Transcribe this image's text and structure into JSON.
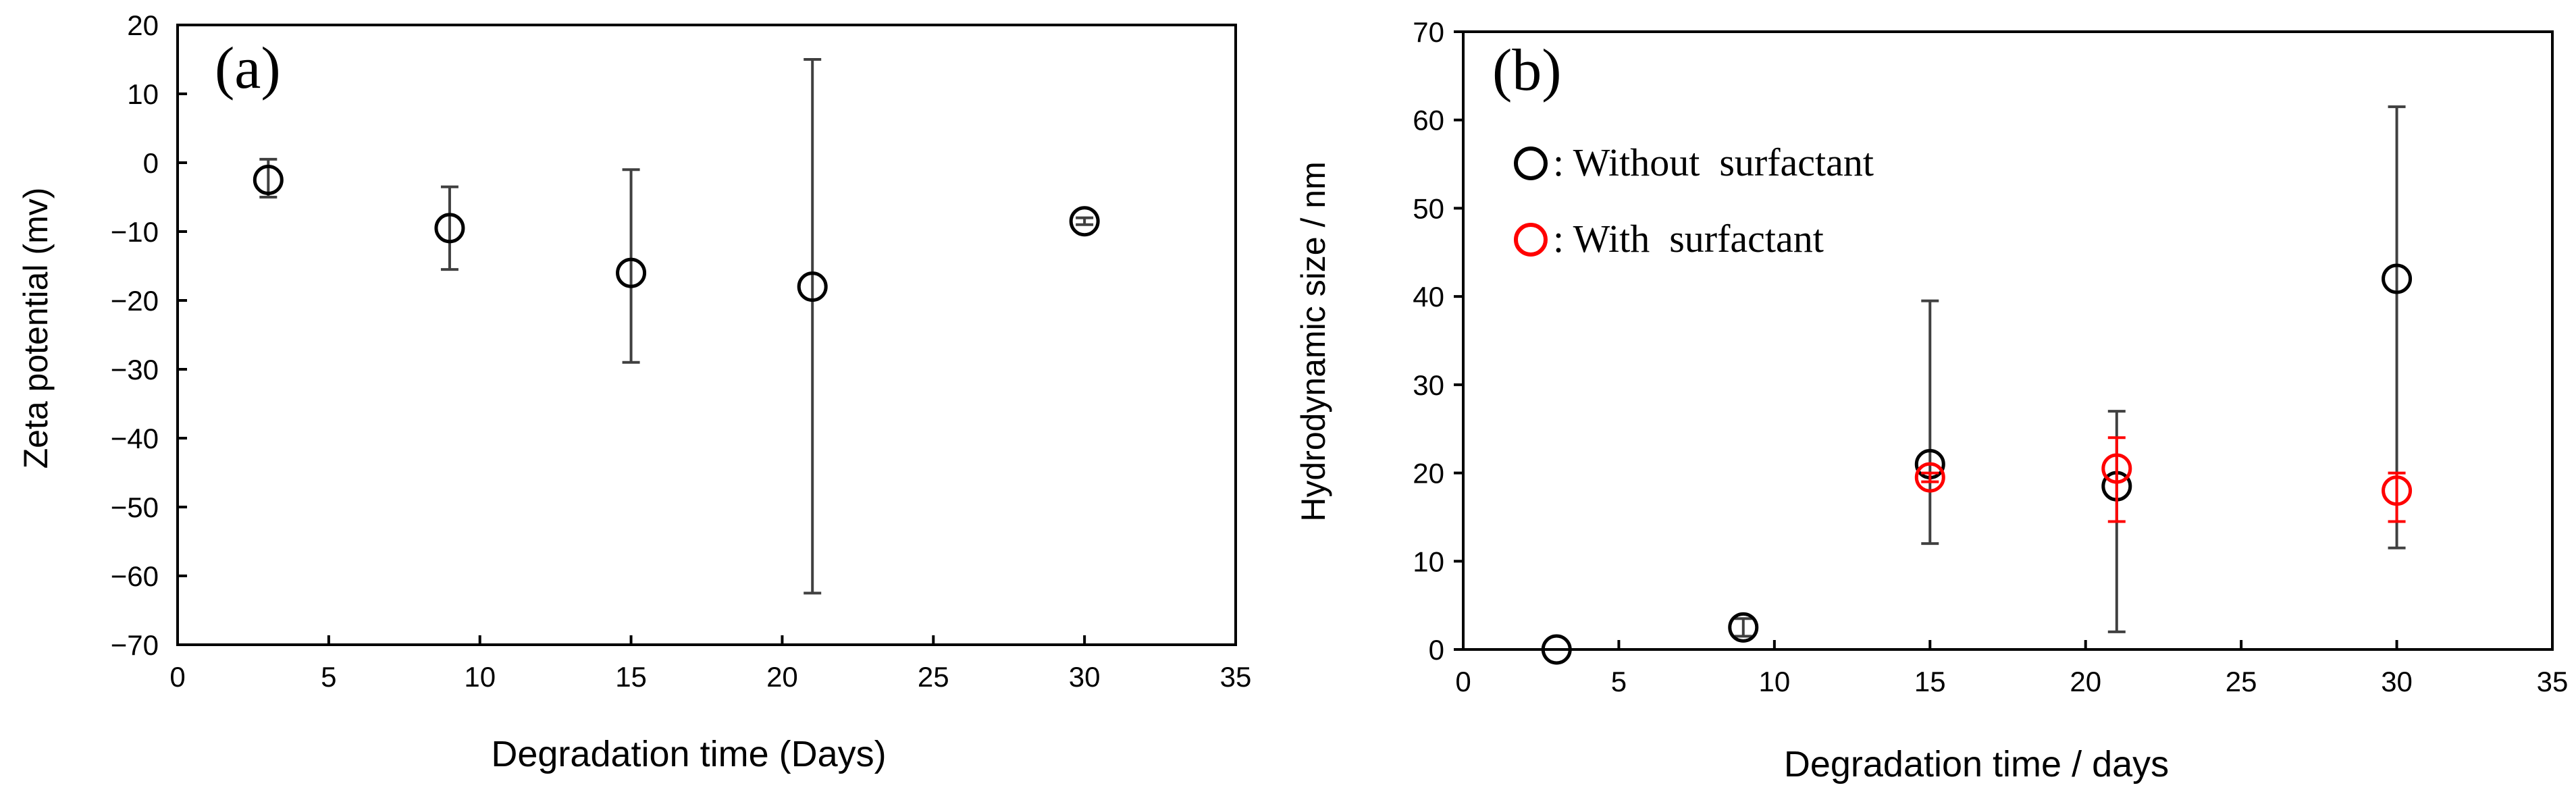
{
  "chart_data": [
    {
      "type": "scatter",
      "panel_label": "(a)",
      "xlabel": "Degradation time (Days)",
      "ylabel": "Zeta potential (mv)",
      "xlim": [
        0,
        35
      ],
      "ylim": [
        -70,
        20
      ],
      "xticks": [
        0,
        5,
        10,
        15,
        20,
        25,
        30,
        35
      ],
      "yticks": [
        20,
        10,
        0,
        -10,
        -20,
        -30,
        -40,
        -50,
        -60,
        -70
      ],
      "grid": false,
      "series": [
        {
          "color": "#000000",
          "marker": "open-circle",
          "points": [
            {
              "x": 3,
              "y": -2.5,
              "err_low": -5,
              "err_high": 0.5
            },
            {
              "x": 9,
              "y": -9.5,
              "err_low": -15.5,
              "err_high": -3.5
            },
            {
              "x": 15,
              "y": -16,
              "err_low": -29,
              "err_high": -1
            },
            {
              "x": 21,
              "y": -18,
              "err_low": -62.5,
              "err_high": 15
            },
            {
              "x": 30,
              "y": -8.5,
              "err_low": -9,
              "err_high": -8
            }
          ]
        }
      ]
    },
    {
      "type": "scatter",
      "panel_label": "(b)",
      "xlabel": "Degradation time / days",
      "ylabel": "Hydrodynamic size / nm",
      "xlim": [
        0,
        35
      ],
      "ylim": [
        0,
        70
      ],
      "xticks": [
        0,
        5,
        10,
        15,
        20,
        25,
        30,
        35
      ],
      "yticks": [
        70,
        60,
        50,
        40,
        30,
        20,
        10,
        0
      ],
      "grid": false,
      "legend_position": "top-left",
      "series": [
        {
          "name": ": Without  surfactant",
          "color": "#000000",
          "marker": "open-circle",
          "points": [
            {
              "x": 3,
              "y": 0,
              "err_low": 0,
              "err_high": 0
            },
            {
              "x": 9,
              "y": 2.5,
              "err_low": 1.5,
              "err_high": 3.5
            },
            {
              "x": 15,
              "y": 21,
              "err_low": 12,
              "err_high": 39.5
            },
            {
              "x": 21,
              "y": 18.5,
              "err_low": 2,
              "err_high": 27
            },
            {
              "x": 30,
              "y": 42,
              "err_low": 11.5,
              "err_high": 61.5
            }
          ]
        },
        {
          "name": ": With  surfactant",
          "color": "#ff0000",
          "marker": "open-circle",
          "points": [
            {
              "x": 15,
              "y": 19.5,
              "err_low": 19,
              "err_high": 20
            },
            {
              "x": 21,
              "y": 20.5,
              "err_low": 14.5,
              "err_high": 24
            },
            {
              "x": 30,
              "y": 18,
              "err_low": 14.5,
              "err_high": 20
            }
          ]
        }
      ]
    }
  ]
}
